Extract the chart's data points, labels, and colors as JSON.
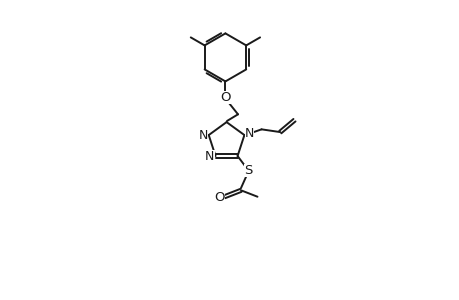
{
  "bg_color": "#ffffff",
  "line_color": "#1a1a1a",
  "line_width": 1.4,
  "font_size": 8.5,
  "figsize": [
    4.6,
    3.0
  ],
  "dpi": 100,
  "xlim": [
    0,
    10
  ],
  "ylim": [
    0,
    13
  ]
}
